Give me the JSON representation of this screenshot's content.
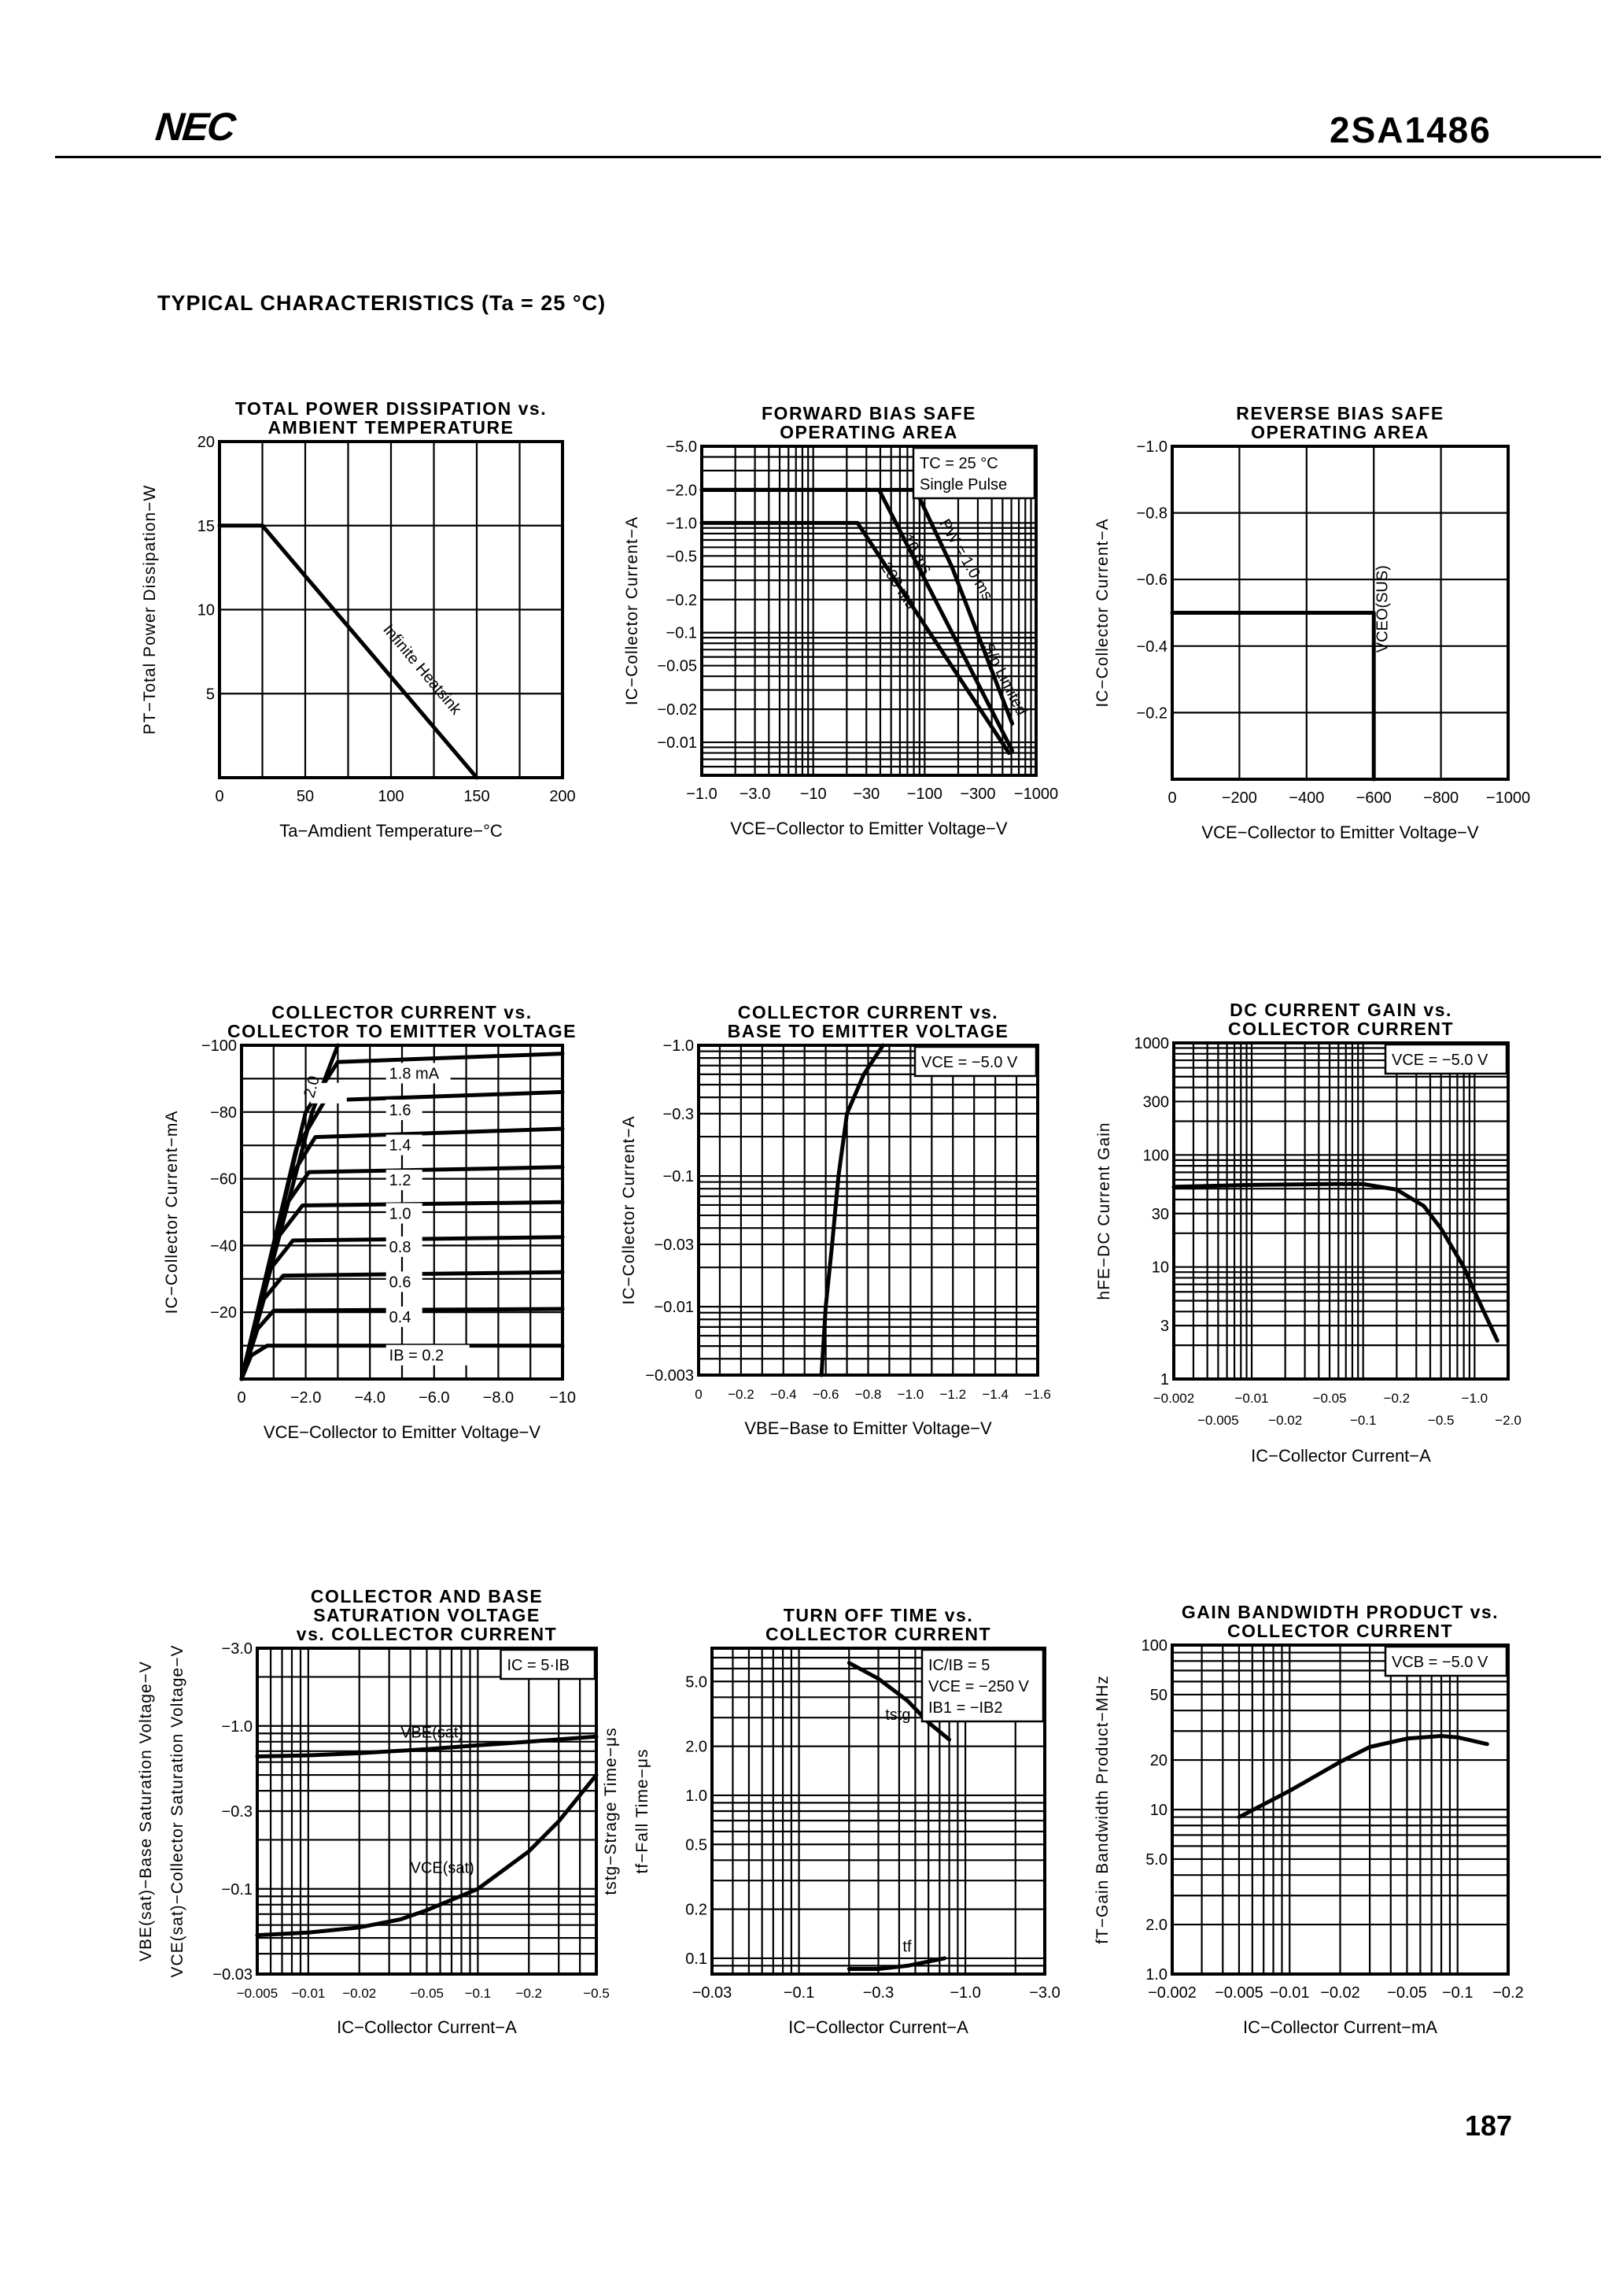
{
  "header": {
    "logo": "NEC",
    "part_number": "2SA1486"
  },
  "section_title": "TYPICAL CHARACTERISTICS (Ta = 25 °C)",
  "page_number": "187",
  "colors": {
    "ink": "#000000",
    "paper": "#ffffff"
  },
  "chart_data": [
    {
      "type": "line",
      "title": [
        "TOTAL POWER DISSIPATION vs.",
        "AMBIENT TEMPERATURE"
      ],
      "xlabel": "Ta−Amdient Temperature−°C",
      "ylabel": [
        "PT−Total Power Dissipation−W"
      ],
      "xscale": "linear",
      "yscale": "linear",
      "xlim": [
        0,
        200
      ],
      "ylim": [
        0,
        20
      ],
      "grid": true,
      "xticks": [
        0,
        50,
        100,
        150,
        200
      ],
      "xtick_labels": [
        "0",
        "50",
        "100",
        "150",
        "200"
      ],
      "yticks": [
        5,
        10,
        15,
        20
      ],
      "ytick_labels": [
        "5",
        "10",
        "15",
        "20"
      ],
      "series": [
        {
          "name": "Infinite Heatsink",
          "points": [
            [
              0,
              15
            ],
            [
              25,
              15
            ],
            [
              150,
              0
            ]
          ]
        }
      ],
      "legend": []
    },
    {
      "type": "line",
      "title": [
        "FORWARD BIAS SAFE",
        "OPERATING AREA"
      ],
      "xlabel": "VCE−Collector to Emitter Voltage−V",
      "ylabel": [
        "IC−Collector Current−A"
      ],
      "xscale": "log",
      "yscale": "log",
      "xlim": [
        -1,
        -1000
      ],
      "ylim": [
        -0.005,
        -5
      ],
      "grid": true,
      "xticks": [
        -1,
        -3,
        -10,
        -30,
        -100,
        -300,
        -1000
      ],
      "xtick_labels": [
        "−1.0",
        "−3.0",
        "−10",
        "−30",
        "−100",
        "−300",
        "−1000"
      ],
      "yticks": [
        -5,
        -2,
        -1,
        -0.5,
        -0.2,
        -0.1,
        -0.05,
        -0.02,
        -0.01
      ],
      "ytick_labels": [
        "−5.0",
        "−2.0",
        "−1.0",
        "−0.5",
        "−0.2",
        "−0.1",
        "−0.05",
        "−0.02",
        "−0.01"
      ],
      "series": [
        {
          "name": "PW = 1.0 ms",
          "points": [
            [
              -1,
              -2
            ],
            [
              -83,
              -2
            ],
            [
              -175,
              -0.4
            ]
          ]
        },
        {
          "name": "S/b Limited",
          "points": [
            [
              -175,
              -0.4
            ],
            [
              -610,
              -0.0148
            ]
          ]
        },
        {
          "name": "10 ms",
          "points": [
            [
              -1,
              -2
            ],
            [
              -39,
              -2
            ],
            [
              -610,
              -0.0084
            ]
          ]
        },
        {
          "name": "200 ms",
          "points": [
            [
              -1,
              -1
            ],
            [
              -25,
              -1
            ],
            [
              -570,
              -0.008
            ]
          ]
        }
      ],
      "legend": [
        "TC = 25 °C",
        "Single Pulse"
      ]
    },
    {
      "type": "line",
      "title": [
        "REVERSE BIAS SAFE",
        "OPERATING AREA"
      ],
      "xlabel": "VCE−Collector to Emitter Voltage−V",
      "ylabel": [
        "IC−Collector Current−A"
      ],
      "xscale": "linear",
      "yscale": "linear",
      "xlim": [
        0,
        -1000
      ],
      "ylim": [
        0,
        -1.0
      ],
      "grid": true,
      "xticks": [
        0,
        -200,
        -400,
        -600,
        -800,
        -1000
      ],
      "xtick_labels": [
        "0",
        "−200",
        "−400",
        "−600",
        "−800",
        "−1000"
      ],
      "yticks": [
        -0.2,
        -0.4,
        -0.6,
        -0.8,
        -1.0
      ],
      "ytick_labels": [
        "−0.2",
        "−0.4",
        "−0.6",
        "−0.8",
        "−1.0"
      ],
      "series": [
        {
          "name": "VCEO(SUS)",
          "points": [
            [
              0,
              -0.5
            ],
            [
              -600,
              -0.5
            ],
            [
              -600,
              0
            ]
          ]
        }
      ],
      "legend": []
    },
    {
      "type": "line",
      "title": [
        "COLLECTOR CURRENT vs.",
        "COLLECTOR TO EMITTER VOLTAGE"
      ],
      "xlabel": "VCE−Collector to Emitter Voltage−V",
      "ylabel": [
        "IC−Collector Current−mA"
      ],
      "xscale": "linear",
      "yscale": "linear",
      "xlim": [
        0,
        -10
      ],
      "ylim": [
        0,
        -100
      ],
      "grid": true,
      "xticks": [
        0,
        -2,
        -4,
        -6,
        -8,
        -10
      ],
      "xtick_labels": [
        "0",
        "−2.0",
        "−4.0",
        "−6.0",
        "−8.0",
        "−10"
      ],
      "yticks": [
        -20,
        -40,
        -60,
        -80,
        -100
      ],
      "ytick_labels": [
        "−20",
        "−40",
        "−60",
        "−80",
        "−100"
      ],
      "series": [
        {
          "name": "IB = 0.2",
          "points": [
            [
              0,
              0
            ],
            [
              -0.3,
              -7
            ],
            [
              -0.8,
              -10
            ],
            [
              -10,
              -10
            ]
          ]
        },
        {
          "name": "0.4",
          "points": [
            [
              0,
              0
            ],
            [
              -0.5,
              -15
            ],
            [
              -1.0,
              -20.5
            ],
            [
              -10,
              -21
            ]
          ]
        },
        {
          "name": "0.6",
          "points": [
            [
              0,
              0
            ],
            [
              -0.7,
              -24
            ],
            [
              -1.3,
              -31
            ],
            [
              -10,
              -32
            ]
          ]
        },
        {
          "name": "0.8",
          "points": [
            [
              0,
              0
            ],
            [
              -0.9,
              -33
            ],
            [
              -1.6,
              -41.5
            ],
            [
              -10,
              -42.5
            ]
          ]
        },
        {
          "name": "1.0",
          "points": [
            [
              0,
              0
            ],
            [
              -1.1,
              -42
            ],
            [
              -1.9,
              -52
            ],
            [
              -10,
              -53
            ]
          ]
        },
        {
          "name": "1.2",
          "points": [
            [
              0,
              0
            ],
            [
              -1.3,
              -51
            ],
            [
              -2.1,
              -62
            ],
            [
              -10,
              -63.5
            ]
          ]
        },
        {
          "name": "1.4",
          "points": [
            [
              0,
              0
            ],
            [
              -1.5,
              -60
            ],
            [
              -2.3,
              -72.5
            ],
            [
              -10,
              -75
            ]
          ]
        },
        {
          "name": "1.6",
          "points": [
            [
              0,
              0
            ],
            [
              -1.7,
              -69
            ],
            [
              -2.6,
              -83.5
            ],
            [
              -10,
              -86
            ]
          ]
        },
        {
          "name": "1.8 mA",
          "points": [
            [
              0,
              0
            ],
            [
              -2.0,
              -80
            ],
            [
              -3.0,
              -95
            ],
            [
              -10,
              -97.5
            ]
          ]
        },
        {
          "name": "2.0",
          "points": [
            [
              0,
              0
            ],
            [
              -2.2,
              -80
            ],
            [
              -3.0,
              -100
            ]
          ]
        }
      ],
      "legend": []
    },
    {
      "type": "line",
      "title": [
        "COLLECTOR CURRENT vs.",
        "BASE TO EMITTER VOLTAGE"
      ],
      "xlabel": "VBE−Base to Emitter Voltage−V",
      "ylabel": [
        "IC−Collector Current−A"
      ],
      "xscale": "linear",
      "yscale": "log",
      "xlim": [
        0,
        -1.6
      ],
      "ylim": [
        -0.003,
        -1.0
      ],
      "grid": true,
      "xticks": [
        0,
        -0.2,
        -0.4,
        -0.6,
        -0.8,
        -1.0,
        -1.2,
        -1.4,
        -1.6
      ],
      "xtick_labels": [
        "0",
        "−0.2",
        "−0.4",
        "−0.6",
        "−0.8",
        "−1.0",
        "−1.2",
        "−1.4",
        "−1.6"
      ],
      "yticks": [
        -0.003,
        -0.01,
        -0.03,
        -0.1,
        -0.3,
        -1.0
      ],
      "ytick_labels": [
        "−0.003",
        "−0.01",
        "−0.03",
        "−0.1",
        "−0.3",
        "−1.0"
      ],
      "series": [
        {
          "points": [
            [
              -0.58,
              -0.003
            ],
            [
              -0.6,
              -0.01
            ],
            [
              -0.63,
              -0.03
            ],
            [
              -0.66,
              -0.1
            ],
            [
              -0.7,
              -0.3
            ],
            [
              -0.78,
              -0.6
            ],
            [
              -0.87,
              -1.0
            ]
          ]
        }
      ],
      "legend": [
        "VCE = −5.0 V"
      ]
    },
    {
      "type": "line",
      "title": [
        "DC CURRENT GAIN vs.",
        "COLLECTOR CURRENT"
      ],
      "xlabel": "IC−Collector Current−A",
      "ylabel": [
        "hFE−DC Current Gain"
      ],
      "xscale": "log",
      "yscale": "log",
      "xlim": [
        -0.002,
        -2.0
      ],
      "ylim": [
        1,
        1000
      ],
      "grid": true,
      "xticks": [
        -0.002,
        -0.005,
        -0.01,
        -0.02,
        -0.05,
        -0.1,
        -0.2,
        -0.5,
        -1.0,
        -2.0
      ],
      "xtick_labels": [
        "−0.002",
        "−0.005",
        "−0.01",
        "−0.02",
        "−0.05",
        "−0.1",
        "−0.2",
        "−0.5",
        "−1.0",
        "−2.0"
      ],
      "yticks": [
        1,
        3,
        10,
        30,
        100,
        300,
        1000
      ],
      "ytick_labels": [
        "1",
        "3",
        "10",
        "30",
        "100",
        "300",
        "1000"
      ],
      "series": [
        {
          "points": [
            [
              -0.002,
              52
            ],
            [
              -0.01,
              54
            ],
            [
              -0.05,
              55
            ],
            [
              -0.1,
              55
            ],
            [
              -0.2,
              49
            ],
            [
              -0.35,
              35
            ],
            [
              -0.5,
              22
            ],
            [
              -0.8,
              10
            ],
            [
              -1.0,
              6
            ],
            [
              -1.6,
              2.2
            ]
          ]
        }
      ],
      "legend": [
        "VCE = −5.0 V"
      ]
    },
    {
      "type": "line",
      "title": [
        "COLLECTOR AND BASE",
        "SATURATION VOLTAGE",
        "vs. COLLECTOR CURRENT"
      ],
      "xlabel": "IC−Collector Current−A",
      "ylabel": [
        "VBE(sat)−Base Saturation Voltage−V",
        "VCE(sat)−Collector Saturation Voltage−V"
      ],
      "xscale": "log",
      "yscale": "log",
      "xlim": [
        -0.005,
        -0.5
      ],
      "ylim": [
        -0.03,
        -3.0
      ],
      "grid": true,
      "xticks": [
        -0.005,
        -0.01,
        -0.02,
        -0.05,
        -0.1,
        -0.2,
        -0.5
      ],
      "xtick_labels": [
        "−0.005",
        "−0.01",
        "−0.02",
        "−0.05",
        "−0.1",
        "−0.2",
        "−0.5"
      ],
      "yticks": [
        -0.03,
        -0.1,
        -0.3,
        -1.0,
        -3.0
      ],
      "ytick_labels": [
        "−0.03",
        "−0.1",
        "−0.3",
        "−1.0",
        "−3.0"
      ],
      "series": [
        {
          "name": "VBE(sat)",
          "points": [
            [
              -0.005,
              -0.65
            ],
            [
              -0.01,
              -0.66
            ],
            [
              -0.02,
              -0.68
            ],
            [
              -0.05,
              -0.72
            ],
            [
              -0.1,
              -0.76
            ],
            [
              -0.2,
              -0.8
            ],
            [
              -0.5,
              -0.86
            ]
          ]
        },
        {
          "name": "VCE(sat)",
          "points": [
            [
              -0.005,
              -0.052
            ],
            [
              -0.01,
              -0.054
            ],
            [
              -0.02,
              -0.058
            ],
            [
              -0.035,
              -0.065
            ],
            [
              -0.05,
              -0.074
            ],
            [
              -0.1,
              -0.1
            ],
            [
              -0.2,
              -0.17
            ],
            [
              -0.3,
              -0.26
            ],
            [
              -0.5,
              -0.5
            ]
          ]
        }
      ],
      "legend": [
        "IC = 5·IB"
      ]
    },
    {
      "type": "line",
      "title": [
        "TURN OFF TIME vs.",
        "COLLECTOR CURRENT"
      ],
      "xlabel": "IC−Collector Current−A",
      "ylabel": [
        "tstg−Strage Time−μs",
        "tf−Fall Time−μs"
      ],
      "xscale": "log",
      "yscale": "log",
      "xlim": [
        -0.03,
        -3.0
      ],
      "ylim": [
        0.08,
        8
      ],
      "grid": true,
      "xticks": [
        -0.03,
        -0.1,
        -0.3,
        -1.0,
        -3.0
      ],
      "xtick_labels": [
        "−0.03",
        "−0.1",
        "−0.3",
        "−1.0",
        "−3.0"
      ],
      "yticks": [
        0.1,
        0.2,
        0.5,
        1.0,
        2.0,
        5.0
      ],
      "ytick_labels": [
        "0.1",
        "0.2",
        "0.5",
        "1.0",
        "2.0",
        "5.0"
      ],
      "series": [
        {
          "name": "tstg",
          "points": [
            [
              -0.2,
              6.5
            ],
            [
              -0.3,
              5.2
            ],
            [
              -0.45,
              3.8
            ],
            [
              -0.6,
              2.8
            ],
            [
              -0.8,
              2.2
            ]
          ]
        },
        {
          "name": "tf",
          "points": [
            [
              -0.2,
              0.086
            ],
            [
              -0.3,
              0.086
            ],
            [
              -0.45,
              0.09
            ],
            [
              -0.75,
              0.1
            ]
          ]
        }
      ],
      "legend": [
        "IC/IB = 5",
        "VCE = −250 V",
        "IB1 = −IB2"
      ]
    },
    {
      "type": "line",
      "title": [
        "GAIN BANDWIDTH PRODUCT vs.",
        "COLLECTOR CURRENT"
      ],
      "xlabel": "IC−Collector Current−mA",
      "ylabel": [
        "fT−Gain Bandwidth Product−MHz"
      ],
      "xscale": "log",
      "yscale": "log",
      "xlim": [
        -0.002,
        -0.2
      ],
      "ylim": [
        1.0,
        100
      ],
      "grid": true,
      "xticks": [
        -0.002,
        -0.005,
        -0.01,
        -0.02,
        -0.05,
        -0.1,
        -0.2
      ],
      "xtick_labels": [
        "−0.002",
        "−0.005",
        "−0.01",
        "−0.02",
        "−0.05",
        "−0.1",
        "−0.2"
      ],
      "yticks": [
        1,
        2,
        5,
        10,
        20,
        50,
        100
      ],
      "ytick_labels": [
        "1.0",
        "2.0",
        "5.0",
        "10",
        "20",
        "50",
        "100"
      ],
      "series": [
        {
          "points": [
            [
              -0.005,
              9
            ],
            [
              -0.01,
              13
            ],
            [
              -0.02,
              19.5
            ],
            [
              -0.03,
              24
            ],
            [
              -0.05,
              27
            ],
            [
              -0.08,
              28
            ],
            [
              -0.1,
              27.5
            ],
            [
              -0.15,
              25
            ]
          ]
        }
      ],
      "legend": [
        "VCB = −5.0 V"
      ]
    }
  ]
}
